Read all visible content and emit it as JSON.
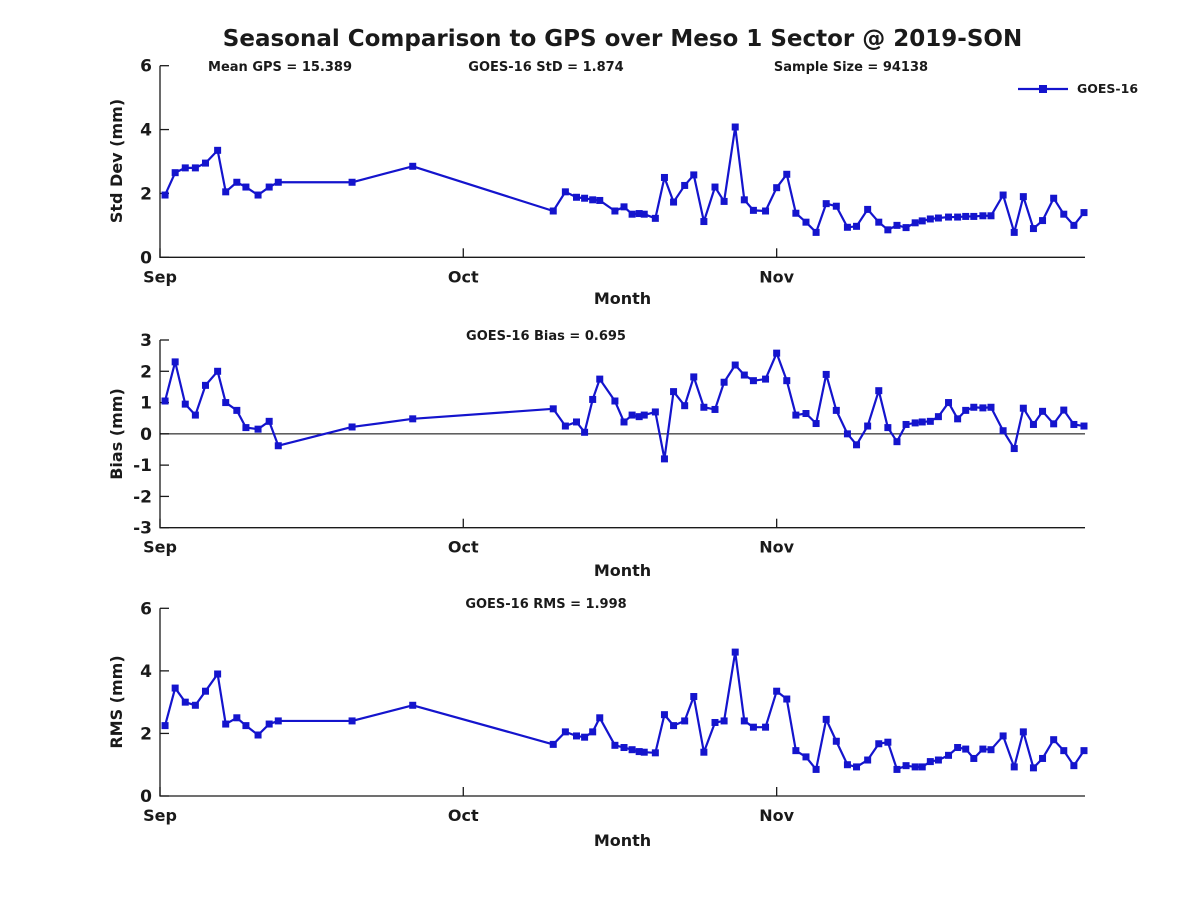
{
  "figure": {
    "title": "Seasonal Comparison to GPS over Meso 1 Sector @ 2019-SON",
    "annotations": [
      "Mean GPS = 15.389",
      "GOES-16 StD = 1.874",
      "Sample Size = 94138"
    ],
    "legend": {
      "label": "GOES-16"
    },
    "accent_color": "#1414cd",
    "axis_color": "#1a1a1a"
  },
  "chart_data": [
    {
      "type": "line",
      "title": "",
      "ylabel": "Std Dev (mm)",
      "xlabel": "Month",
      "ylim": [
        0,
        6
      ],
      "yticks": [
        0,
        2,
        4,
        6
      ],
      "xlim_days": [
        0,
        91.5
      ],
      "xtick_days": [
        0,
        30,
        61
      ],
      "xtick_labels": [
        "Sep",
        "Oct",
        "Nov"
      ],
      "zero_line": false,
      "legend_entries": [
        "GOES-16"
      ],
      "series": [
        {
          "name": "GOES-16",
          "color": "#1414cd",
          "marker": "square",
          "x_days": [
            0.5,
            1.5,
            2.5,
            3.5,
            4.5,
            5.7,
            6.5,
            7.6,
            8.5,
            9.7,
            10.8,
            11.7,
            19,
            25,
            38.9,
            40.1,
            41.2,
            42,
            42.8,
            43.5,
            45,
            45.9,
            46.7,
            47.4,
            47.9,
            49,
            49.9,
            50.8,
            51.9,
            52.8,
            53.8,
            54.9,
            55.8,
            56.9,
            57.8,
            58.7,
            59.9,
            61,
            62,
            62.9,
            63.9,
            64.9,
            65.9,
            66.9,
            68,
            68.9,
            70,
            71.1,
            72,
            72.9,
            73.8,
            74.7,
            75.4,
            76.2,
            77,
            78,
            78.9,
            79.7,
            80.5,
            81.4,
            82.2,
            83.4,
            84.5,
            85.4,
            86.4,
            87.3,
            88.4,
            89.4,
            90.4,
            91.4
          ],
          "values": [
            1.95,
            2.65,
            2.8,
            2.8,
            2.95,
            3.35,
            2.05,
            2.35,
            2.2,
            1.95,
            2.2,
            2.35,
            2.35,
            2.85,
            1.45,
            2.05,
            1.88,
            1.85,
            1.8,
            1.78,
            1.45,
            1.58,
            1.35,
            1.37,
            1.35,
            1.22,
            2.5,
            1.73,
            2.25,
            2.58,
            1.12,
            2.2,
            1.75,
            4.08,
            1.8,
            1.47,
            1.45,
            2.18,
            2.6,
            1.38,
            1.1,
            0.78,
            1.68,
            1.6,
            0.94,
            0.97,
            1.5,
            1.1,
            0.86,
            1.0,
            0.93,
            1.08,
            1.14,
            1.2,
            1.23,
            1.26,
            1.26,
            1.28,
            1.28,
            1.3,
            1.3,
            1.95,
            0.78,
            1.9,
            0.9,
            1.15,
            1.85,
            1.35,
            1.0,
            1.4
          ]
        }
      ]
    },
    {
      "type": "line",
      "title": "GOES-16 Bias = 0.695",
      "ylabel": "Bias (mm)",
      "xlabel": "Month",
      "ylim": [
        -3,
        3
      ],
      "yticks": [
        -3,
        -2,
        -1,
        0,
        1,
        2,
        3
      ],
      "xlim_days": [
        0,
        91.5
      ],
      "xtick_days": [
        0,
        30,
        61
      ],
      "xtick_labels": [
        "Sep",
        "Oct",
        "Nov"
      ],
      "zero_line": true,
      "series": [
        {
          "name": "GOES-16",
          "color": "#1414cd",
          "marker": "square",
          "x_days": [
            0.5,
            1.5,
            2.5,
            3.5,
            4.5,
            5.7,
            6.5,
            7.6,
            8.5,
            9.7,
            10.8,
            11.7,
            19,
            25,
            38.9,
            40.1,
            41.2,
            42,
            42.8,
            43.5,
            45,
            45.9,
            46.7,
            47.4,
            47.9,
            49,
            49.9,
            50.8,
            51.9,
            52.8,
            53.8,
            54.9,
            55.8,
            56.9,
            57.8,
            58.7,
            59.9,
            61,
            62,
            62.9,
            63.9,
            64.9,
            65.9,
            66.9,
            68,
            68.9,
            70,
            71.1,
            72,
            72.9,
            73.8,
            74.7,
            75.4,
            76.2,
            77,
            78,
            78.9,
            79.7,
            80.5,
            81.4,
            82.2,
            83.4,
            84.5,
            85.4,
            86.4,
            87.3,
            88.4,
            89.4,
            90.4,
            91.4
          ],
          "values": [
            1.05,
            2.3,
            0.95,
            0.6,
            1.55,
            2.0,
            1.0,
            0.75,
            0.2,
            0.15,
            0.4,
            -0.38,
            0.22,
            0.48,
            0.8,
            0.25,
            0.38,
            0.05,
            1.1,
            1.75,
            1.05,
            0.38,
            0.6,
            0.55,
            0.6,
            0.7,
            -0.8,
            1.35,
            0.9,
            1.82,
            0.85,
            0.78,
            1.65,
            2.2,
            1.88,
            1.7,
            1.75,
            2.58,
            1.7,
            0.6,
            0.65,
            0.33,
            1.9,
            0.75,
            0.0,
            -0.35,
            0.25,
            1.38,
            0.2,
            -0.25,
            0.3,
            0.35,
            0.38,
            0.4,
            0.55,
            1.0,
            0.48,
            0.75,
            0.85,
            0.83,
            0.85,
            0.1,
            -0.47,
            0.82,
            0.3,
            0.72,
            0.32,
            0.76,
            0.3,
            0.25
          ]
        }
      ]
    },
    {
      "type": "line",
      "title": "GOES-16 RMS = 1.998",
      "ylabel": "RMS (mm)",
      "xlabel": "Month",
      "ylim": [
        0,
        6
      ],
      "yticks": [
        0,
        2,
        4,
        6
      ],
      "xlim_days": [
        0,
        91.5
      ],
      "xtick_days": [
        0,
        30,
        61
      ],
      "xtick_labels": [
        "Sep",
        "Oct",
        "Nov"
      ],
      "zero_line": false,
      "series": [
        {
          "name": "GOES-16",
          "color": "#1414cd",
          "marker": "square",
          "x_days": [
            0.5,
            1.5,
            2.5,
            3.5,
            4.5,
            5.7,
            6.5,
            7.6,
            8.5,
            9.7,
            10.8,
            11.7,
            19,
            25,
            38.9,
            40.1,
            41.2,
            42,
            42.8,
            43.5,
            45,
            45.9,
            46.7,
            47.4,
            47.9,
            49,
            49.9,
            50.8,
            51.9,
            52.8,
            53.8,
            54.9,
            55.8,
            56.9,
            57.8,
            58.7,
            59.9,
            61,
            62,
            62.9,
            63.9,
            64.9,
            65.9,
            66.9,
            68,
            68.9,
            70,
            71.1,
            72,
            72.9,
            73.8,
            74.7,
            75.4,
            76.2,
            77,
            78,
            78.9,
            79.7,
            80.5,
            81.4,
            82.2,
            83.4,
            84.5,
            85.4,
            86.4,
            87.3,
            88.4,
            89.4,
            90.4,
            91.4
          ],
          "values": [
            2.25,
            3.45,
            3.0,
            2.9,
            3.35,
            3.9,
            2.3,
            2.5,
            2.25,
            1.95,
            2.3,
            2.4,
            2.4,
            2.9,
            1.65,
            2.05,
            1.92,
            1.88,
            2.05,
            2.5,
            1.62,
            1.55,
            1.48,
            1.42,
            1.4,
            1.38,
            2.6,
            2.25,
            2.4,
            3.18,
            1.4,
            2.35,
            2.4,
            4.6,
            2.4,
            2.2,
            2.2,
            3.35,
            3.1,
            1.45,
            1.25,
            0.85,
            2.45,
            1.75,
            1.0,
            0.93,
            1.15,
            1.67,
            1.72,
            0.85,
            0.97,
            0.93,
            0.93,
            1.1,
            1.15,
            1.3,
            1.55,
            1.5,
            1.2,
            1.5,
            1.48,
            1.92,
            0.93,
            2.05,
            0.9,
            1.2,
            1.8,
            1.45,
            0.97,
            1.45
          ]
        }
      ]
    }
  ]
}
